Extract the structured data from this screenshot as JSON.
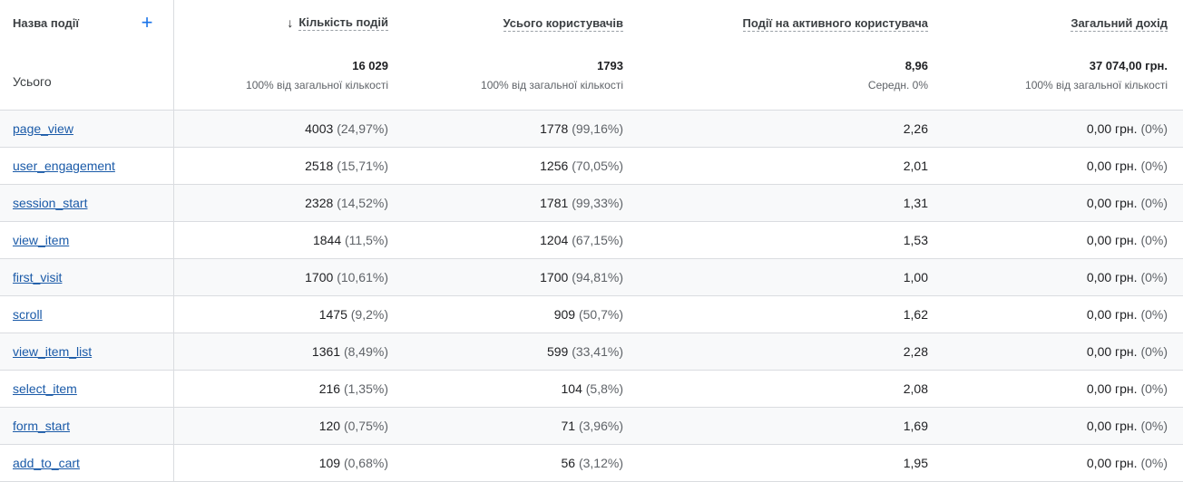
{
  "header": {
    "event_name": "Назва події",
    "add_icon": "plus-icon",
    "sort_icon": "arrow-down-icon",
    "columns": [
      "Кількість подій",
      "Усього користувачів",
      "Події на активного користувача",
      "Загальний дохід"
    ]
  },
  "totals": {
    "label": "Усього",
    "values": [
      "16 029",
      "1793",
      "8,96",
      "37 074,00 грн."
    ],
    "subs": [
      "100% від загальної кількості",
      "100% від загальної кількості",
      "Середн. 0%",
      "100% від загальної кількості"
    ]
  },
  "rows": [
    {
      "name": "page_view",
      "count": "4003",
      "count_pct": "(24,97%)",
      "users": "1778",
      "users_pct": "(99,16%)",
      "per_user": "2,26",
      "revenue": "0,00 грн.",
      "revenue_pct": "(0%)"
    },
    {
      "name": "user_engagement",
      "count": "2518",
      "count_pct": "(15,71%)",
      "users": "1256",
      "users_pct": "(70,05%)",
      "per_user": "2,01",
      "revenue": "0,00 грн.",
      "revenue_pct": "(0%)"
    },
    {
      "name": "session_start",
      "count": "2328",
      "count_pct": "(14,52%)",
      "users": "1781",
      "users_pct": "(99,33%)",
      "per_user": "1,31",
      "revenue": "0,00 грн.",
      "revenue_pct": "(0%)"
    },
    {
      "name": "view_item",
      "count": "1844",
      "count_pct": "(11,5%)",
      "users": "1204",
      "users_pct": "(67,15%)",
      "per_user": "1,53",
      "revenue": "0,00 грн.",
      "revenue_pct": "(0%)"
    },
    {
      "name": "first_visit",
      "count": "1700",
      "count_pct": "(10,61%)",
      "users": "1700",
      "users_pct": "(94,81%)",
      "per_user": "1,00",
      "revenue": "0,00 грн.",
      "revenue_pct": "(0%)"
    },
    {
      "name": "scroll",
      "count": "1475",
      "count_pct": "(9,2%)",
      "users": "909",
      "users_pct": "(50,7%)",
      "per_user": "1,62",
      "revenue": "0,00 грн.",
      "revenue_pct": "(0%)"
    },
    {
      "name": "view_item_list",
      "count": "1361",
      "count_pct": "(8,49%)",
      "users": "599",
      "users_pct": "(33,41%)",
      "per_user": "2,28",
      "revenue": "0,00 грн.",
      "revenue_pct": "(0%)"
    },
    {
      "name": "select_item",
      "count": "216",
      "count_pct": "(1,35%)",
      "users": "104",
      "users_pct": "(5,8%)",
      "per_user": "2,08",
      "revenue": "0,00 грн.",
      "revenue_pct": "(0%)"
    },
    {
      "name": "form_start",
      "count": "120",
      "count_pct": "(0,75%)",
      "users": "71",
      "users_pct": "(3,96%)",
      "per_user": "1,69",
      "revenue": "0,00 грн.",
      "revenue_pct": "(0%)"
    },
    {
      "name": "add_to_cart",
      "count": "109",
      "count_pct": "(0,68%)",
      "users": "56",
      "users_pct": "(3,12%)",
      "per_user": "1,95",
      "revenue": "0,00 грн.",
      "revenue_pct": "(0%)"
    }
  ]
}
